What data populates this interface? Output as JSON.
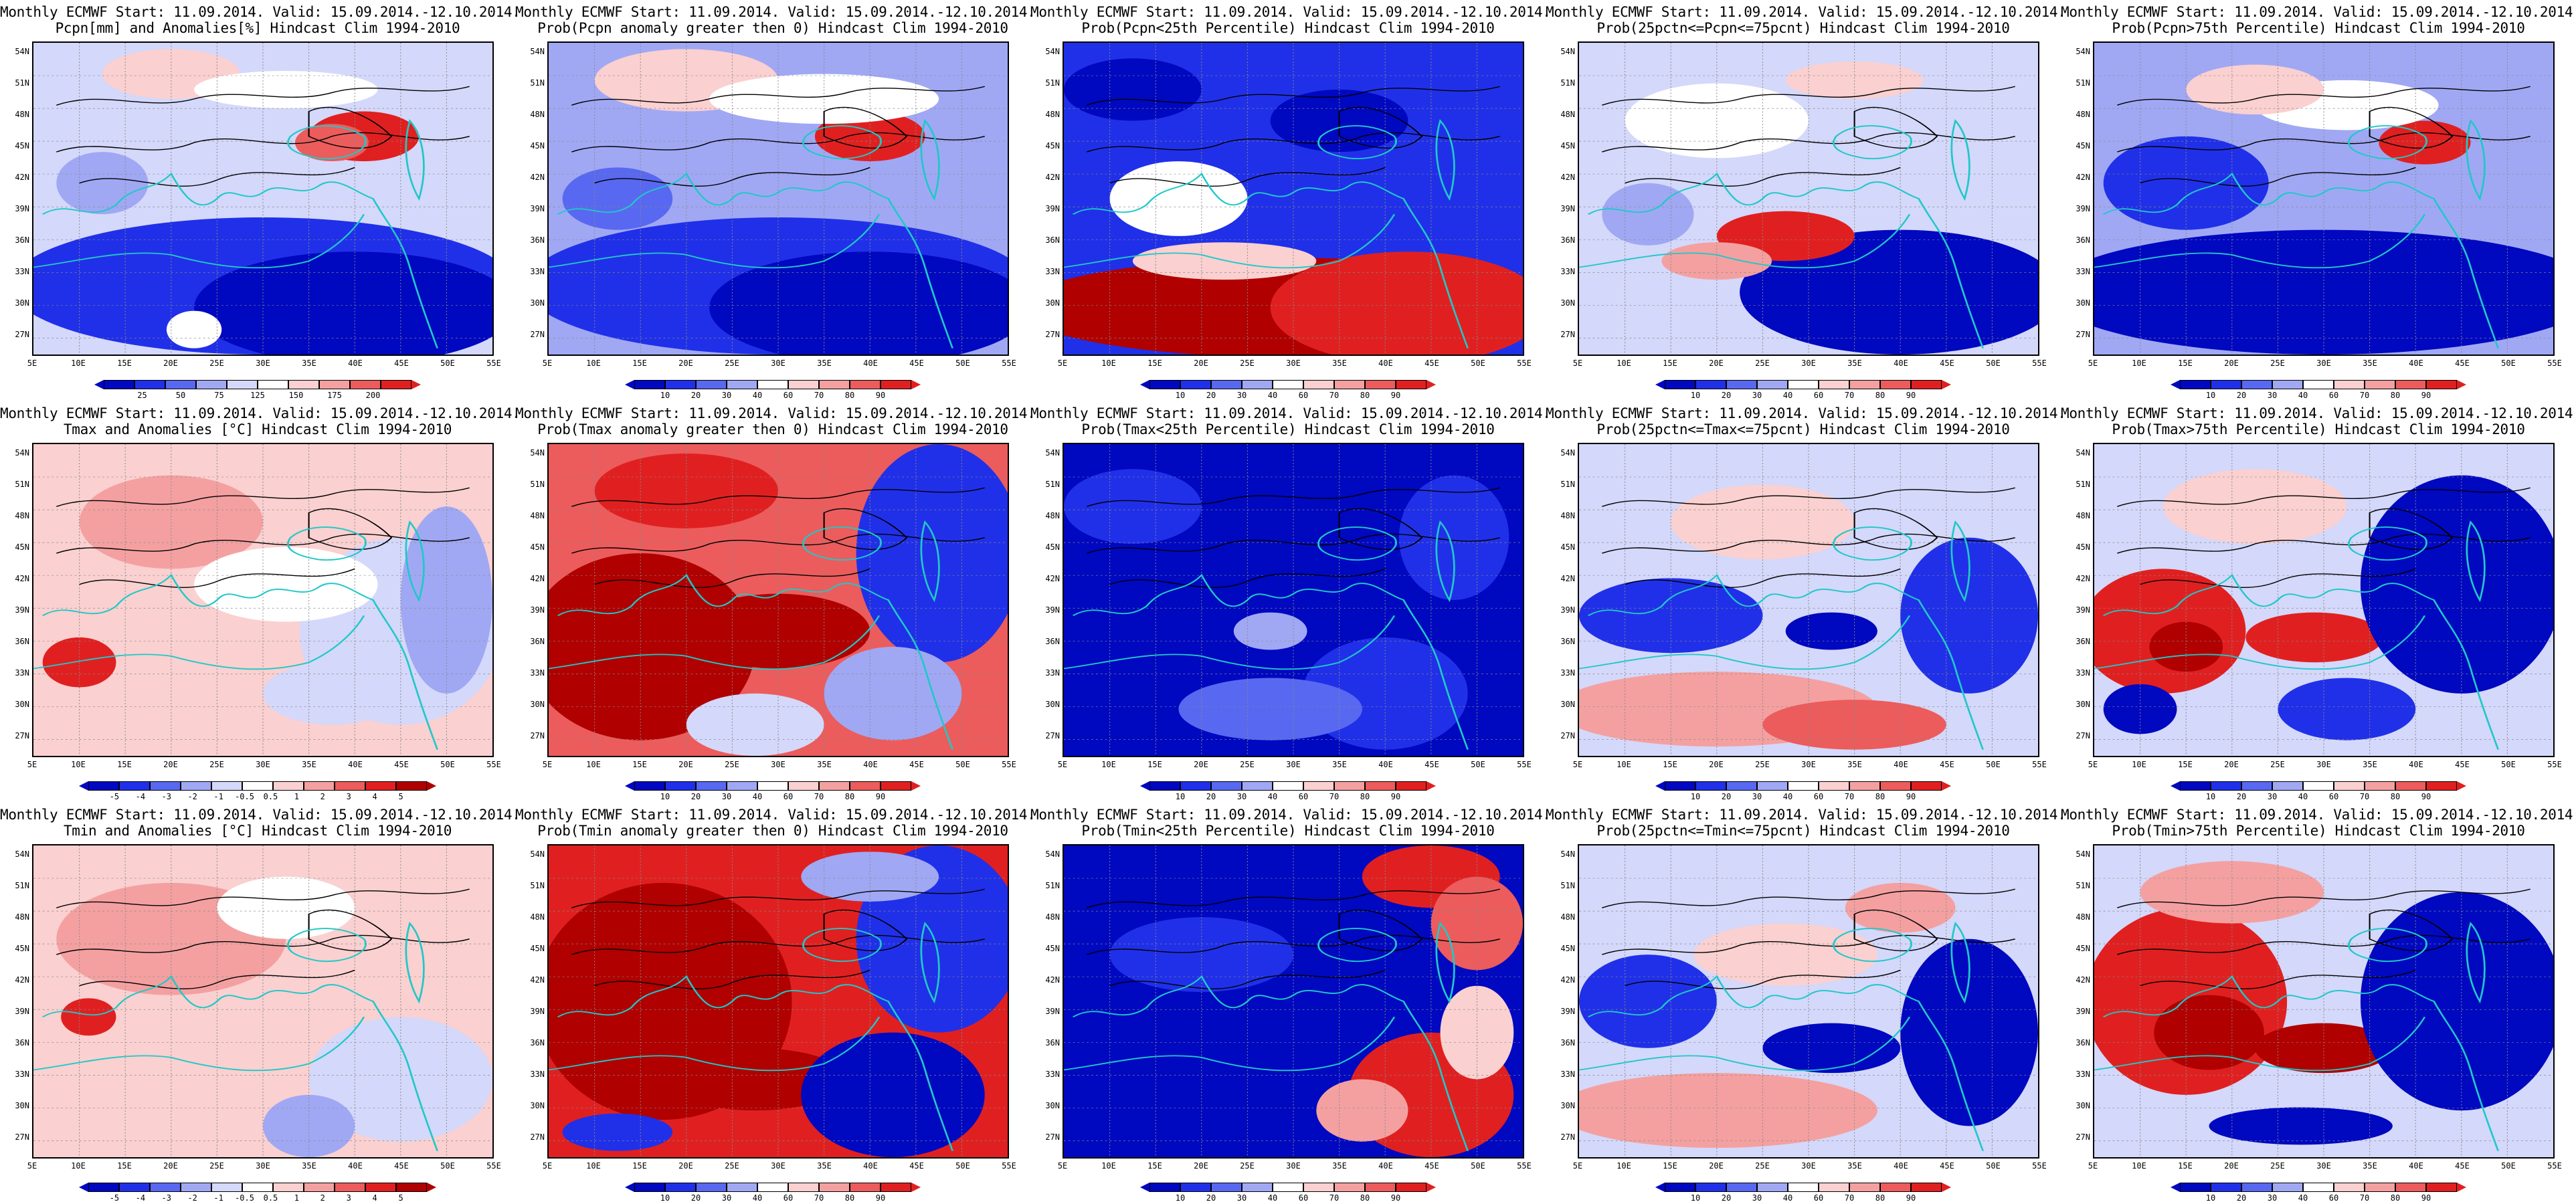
{
  "colors": {
    "dark_blue": "#0008c0",
    "blue": "#2030e8",
    "mid_blue": "#5868f0",
    "light_blue": "#a0a8f4",
    "pale_blue": "#d4d8fa",
    "white": "#ffffff",
    "pale_red": "#fad0d0",
    "light_red": "#f4a0a0",
    "mid_red": "#ec5c5c",
    "red": "#e02020",
    "dark_red": "#b00000",
    "coast": "#20c8c8",
    "contour": "#000000"
  },
  "axes": {
    "lat_labels": [
      "54N",
      "51N",
      "48N",
      "45N",
      "42N",
      "39N",
      "36N",
      "33N",
      "30N",
      "27N"
    ],
    "lon_labels": [
      "5E",
      "10E",
      "15E",
      "20E",
      "25E",
      "30E",
      "35E",
      "40E",
      "45E",
      "50E",
      "55E"
    ]
  },
  "colorbars": {
    "pcpn_anom": [
      "25",
      "50",
      "75",
      "125",
      "150",
      "175",
      "200"
    ],
    "prob": [
      "10",
      "20",
      "30",
      "40",
      "60",
      "70",
      "80",
      "90"
    ],
    "temp_anom": [
      "-5",
      "-4",
      "-3",
      "-2",
      "-1",
      "-0.5",
      "0.5",
      "1",
      "2",
      "3",
      "4",
      "5"
    ]
  },
  "panels": [
    {
      "line1": "Monthly ECMWF Start: 11.09.2014. Valid: 15.09.2014.-12.10.2014.",
      "line2": "Pcpn[mm] and Anomalies[%] Hindcast Clim 1994-2010",
      "cbar": "pcpn_anom",
      "pattern": "pcpn_anom"
    },
    {
      "line1": "Monthly ECMWF Start: 11.09.2014. Valid: 15.09.2014.-12.10.2014.",
      "line2": "Prob(Pcpn anomaly greater then 0) Hindcast Clim 1994-2010",
      "cbar": "prob",
      "pattern": "pcpn_prob"
    },
    {
      "line1": "Monthly ECMWF Start: 11.09.2014. Valid: 15.09.2014.-12.10.2014.",
      "line2": "Prob(Pcpn<25th Percentile) Hindcast Clim 1994-2010",
      "cbar": "prob",
      "pattern": "pcpn_low"
    },
    {
      "line1": "Monthly ECMWF Start: 11.09.2014. Valid: 15.09.2014.-12.10.2014.",
      "line2": "Prob(25pctn<=Pcpn<=75pcnt) Hindcast Clim 1994-2010",
      "cbar": "prob",
      "pattern": "pcpn_mid"
    },
    {
      "line1": "Monthly ECMWF Start: 11.09.2014. Valid: 15.09.2014.-12.10.2014.",
      "line2": "Prob(Pcpn>75th Percentile) Hindcast Clim 1994-2010",
      "cbar": "prob",
      "pattern": "pcpn_high"
    },
    {
      "line1": "Monthly ECMWF Start: 11.09.2014. Valid: 15.09.2014.-12.10.2014.",
      "line2": "Tmax and Anomalies [°C] Hindcast Clim 1994-2010",
      "cbar": "temp_anom",
      "pattern": "tmax_anom"
    },
    {
      "line1": "Monthly ECMWF Start: 11.09.2014. Valid: 15.09.2014.-12.10.2014.",
      "line2": "Prob(Tmax anomaly greater then 0) Hindcast Clim 1994-2010",
      "cbar": "prob",
      "pattern": "tmax_prob"
    },
    {
      "line1": "Monthly ECMWF Start: 11.09.2014. Valid: 15.09.2014.-12.10.2014.",
      "line2": "Prob(Tmax<25th Percentile) Hindcast Clim 1994-2010",
      "cbar": "prob",
      "pattern": "tmax_low"
    },
    {
      "line1": "Monthly ECMWF Start: 11.09.2014. Valid: 15.09.2014.-12.10.2014.",
      "line2": "Prob(25pctn<=Tmax<=75pcnt) Hindcast Clim 1994-2010",
      "cbar": "prob",
      "pattern": "tmax_mid"
    },
    {
      "line1": "Monthly ECMWF Start: 11.09.2014. Valid: 15.09.2014.-12.10.2014.",
      "line2": "Prob(Tmax>75th Percentile) Hindcast Clim 1994-2010",
      "cbar": "prob",
      "pattern": "tmax_high"
    },
    {
      "line1": "Monthly ECMWF Start: 11.09.2014. Valid: 15.09.2014.-12.10.2014.",
      "line2": "Tmin and Anomalies [°C] Hindcast Clim 1994-2010",
      "cbar": "temp_anom",
      "pattern": "tmin_anom"
    },
    {
      "line1": "Monthly ECMWF Start: 11.09.2014. Valid: 15.09.2014.-12.10.2014.",
      "line2": "Prob(Tmin anomaly greater then 0) Hindcast Clim 1994-2010",
      "cbar": "prob",
      "pattern": "tmin_prob"
    },
    {
      "line1": "Monthly ECMWF Start: 11.09.2014. Valid: 15.09.2014.-12.10.2014.",
      "line2": "Prob(Tmin<25th Percentile) Hindcast Clim 1994-2010",
      "cbar": "prob",
      "pattern": "tmin_low"
    },
    {
      "line1": "Monthly ECMWF Start: 11.09.2014. Valid: 15.09.2014.-12.10.2014.",
      "line2": "Prob(25pctn<=Tmin<=75pcnt) Hindcast Clim 1994-2010",
      "cbar": "prob",
      "pattern": "tmin_mid"
    },
    {
      "line1": "Monthly ECMWF Start: 11.09.2014. Valid: 15.09.2014.-12.10.2014.",
      "line2": "Prob(Tmin>75th Percentile) Hindcast Clim 1994-2010",
      "cbar": "prob",
      "pattern": "tmin_high"
    }
  ]
}
